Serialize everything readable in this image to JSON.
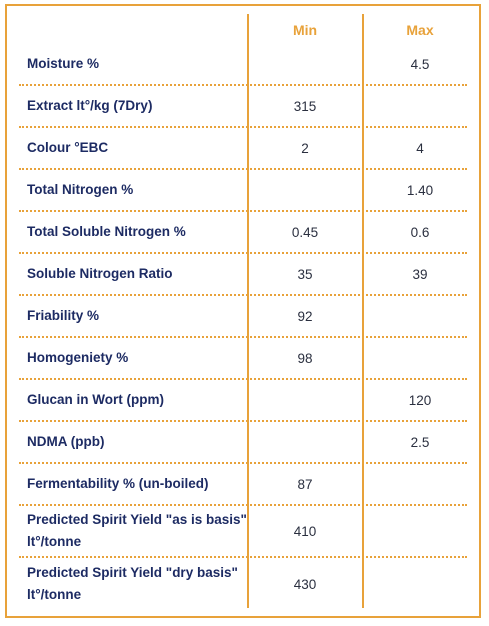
{
  "table": {
    "headers": {
      "min": "Min",
      "max": "Max"
    },
    "rows": [
      {
        "label": "Moisture %",
        "min": "",
        "max": "4.5"
      },
      {
        "label": "Extract lt°/kg (7Dry)",
        "min": "315",
        "max": ""
      },
      {
        "label": "Colour °EBC",
        "min": "2",
        "max": "4"
      },
      {
        "label": "Total Nitrogen %",
        "min": "",
        "max": "1.40"
      },
      {
        "label": "Total Soluble Nitrogen %",
        "min": "0.45",
        "max": "0.6"
      },
      {
        "label": "Soluble Nitrogen Ratio",
        "min": "35",
        "max": "39"
      },
      {
        "label": "Friability %",
        "min": "92",
        "max": ""
      },
      {
        "label": "Homogeniety %",
        "min": "98",
        "max": ""
      },
      {
        "label": "Glucan in Wort (ppm)",
        "min": "",
        "max": "120"
      },
      {
        "label": "NDMA (ppb)",
        "min": "",
        "max": "2.5"
      },
      {
        "label": "Fermentability % (un-boiled)",
        "min": "87",
        "max": ""
      },
      {
        "label": "Predicted Spirit Yield \"as is basis\" lt°/tonne",
        "min": "410",
        "max": ""
      },
      {
        "label": "Predicted Spirit Yield \"dry basis\" lt°/tonne",
        "min": "430",
        "max": ""
      }
    ]
  },
  "colors": {
    "accent": "#e8a23a",
    "label_text": "#1d2b63",
    "value_text": "#2a2f3f"
  }
}
